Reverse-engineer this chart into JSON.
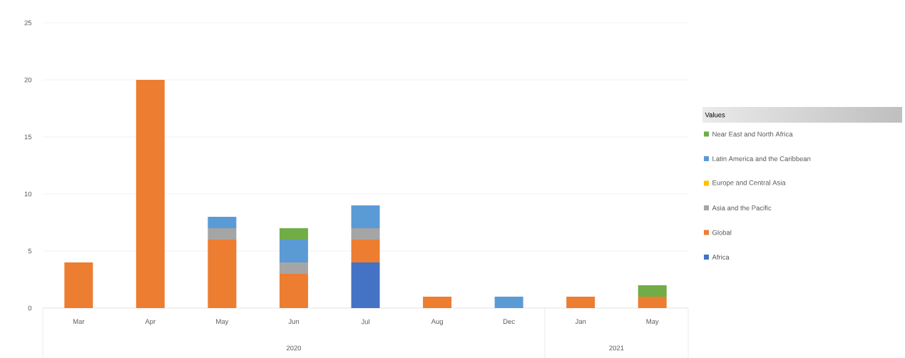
{
  "chart_data": {
    "type": "bar",
    "stacked": true,
    "categories": [
      "Mar",
      "Apr",
      "May",
      "Jun",
      "Jul",
      "Aug",
      "Dec",
      "Jan",
      "May"
    ],
    "series": [
      {
        "name": "Africa",
        "color": "#4472c4",
        "values": [
          0,
          0,
          0,
          0,
          4,
          0,
          0,
          0,
          0
        ]
      },
      {
        "name": "Global",
        "color": "#ed7d31",
        "values": [
          4,
          20,
          6,
          3,
          2,
          1,
          0,
          1,
          1
        ]
      },
      {
        "name": "Asia and the Pacific",
        "color": "#a5a5a5",
        "values": [
          0,
          0,
          1,
          1,
          1,
          0,
          0,
          0,
          0
        ]
      },
      {
        "name": "Europe and Central Asia",
        "color": "#ffc000",
        "values": [
          0,
          0,
          0,
          0,
          0,
          0,
          0,
          0,
          0
        ]
      },
      {
        "name": "Latin America and the Caribbean",
        "color": "#5b9bd5",
        "values": [
          0,
          0,
          1,
          2,
          2,
          0,
          1,
          0,
          0
        ]
      },
      {
        "name": "Near East and North Africa",
        "color": "#70ad47",
        "values": [
          0,
          0,
          0,
          1,
          0,
          0,
          0,
          0,
          1
        ]
      }
    ],
    "ylim": [
      0,
      25
    ],
    "yticks": [
      0,
      5,
      10,
      15,
      20,
      25
    ],
    "grid": "y",
    "legend": "right",
    "legend_title": "Values",
    "annotations": [
      "2020",
      "2021"
    ]
  }
}
